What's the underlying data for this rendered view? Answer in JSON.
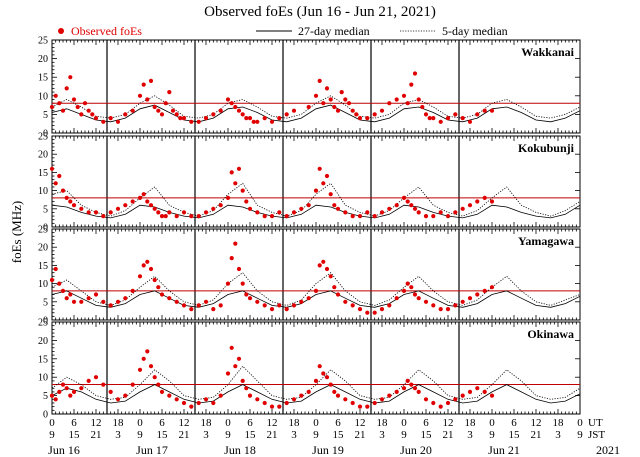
{
  "chart_data": {
    "type": "scatter",
    "title": "Observed foEs (Jun 16 - Jun 21, 2021)",
    "ylabel": "foEs (MHz)",
    "ylim": [
      0,
      25
    ],
    "yticks": [
      "0",
      "5",
      "10",
      "15",
      "20",
      "25"
    ],
    "threshold_mhz": 8,
    "legend": [
      {
        "key": "observed",
        "label": "Observed foEs",
        "color": "#e00000"
      },
      {
        "key": "median27",
        "label": "27-day median"
      },
      {
        "key": "median5",
        "label": "5-day median"
      }
    ],
    "ut_ticks": [
      "0",
      "6",
      "12",
      "18",
      "0",
      "6",
      "12",
      "18",
      "0",
      "6",
      "12",
      "18",
      "0",
      "6",
      "12",
      "18",
      "0",
      "6",
      "12",
      "18",
      "0",
      "6",
      "12",
      "18",
      "0"
    ],
    "jst_ticks": [
      "9",
      "15",
      "21",
      "3",
      "9",
      "15",
      "21",
      "3",
      "9",
      "15",
      "21",
      "3",
      "9",
      "15",
      "21",
      "3",
      "9",
      "15",
      "21",
      "3",
      "9",
      "15",
      "21",
      "3",
      "9"
    ],
    "ut_label": "UT",
    "jst_label": "JST",
    "days": [
      "Jun 16",
      "Jun 17",
      "Jun 18",
      "Jun 19",
      "Jun 20",
      "Jun 21"
    ],
    "year": "2021",
    "x_range_hours": [
      0,
      144
    ],
    "stations": [
      {
        "name": "Wakkanai",
        "observed_hours": [
          0,
          1,
          2,
          3,
          4,
          5,
          6,
          7,
          8,
          9,
          10,
          11,
          12,
          14,
          16,
          18,
          20,
          22,
          24,
          25,
          26,
          27,
          28,
          29,
          30,
          31,
          32,
          33,
          34,
          35,
          36,
          38,
          40,
          42,
          44,
          46,
          48,
          49,
          50,
          51,
          52,
          53,
          54,
          55,
          56,
          58,
          60,
          62,
          64,
          66,
          70,
          72,
          73,
          74,
          75,
          76,
          77,
          78,
          79,
          80,
          81,
          82,
          83,
          84,
          86,
          88,
          90,
          92,
          94,
          96,
          97,
          98,
          99,
          100,
          101,
          102,
          103,
          104,
          106,
          108,
          110,
          112,
          114,
          116,
          118,
          120
        ],
        "observed_mhz": [
          7,
          10,
          8,
          6,
          12,
          15,
          9,
          7,
          5,
          8,
          6,
          5,
          4,
          3,
          4,
          3,
          5,
          6,
          10,
          13,
          9,
          14,
          7,
          6,
          5,
          8,
          11,
          6,
          5,
          4,
          4,
          3,
          3,
          4,
          5,
          6,
          9,
          8,
          7,
          6,
          5,
          4,
          4,
          3,
          3,
          4,
          3,
          4,
          5,
          6,
          7,
          10,
          14,
          8,
          12,
          9,
          7,
          6,
          11,
          9,
          8,
          6,
          5,
          4,
          4,
          5,
          6,
          8,
          9,
          10,
          8,
          13,
          16,
          9,
          7,
          5,
          4,
          4,
          3,
          4,
          5,
          4,
          3,
          5,
          6,
          6
        ],
        "median27_hours": [
          0,
          4,
          8,
          12,
          16,
          20,
          24,
          28,
          32,
          36,
          40,
          44,
          48,
          52,
          56,
          60,
          64,
          68,
          72,
          76,
          80,
          84,
          88,
          92,
          96,
          100,
          104,
          108,
          112,
          116,
          120,
          124,
          128,
          132,
          136,
          140,
          144
        ],
        "median27_mhz": [
          5.5,
          6.5,
          5,
          3.5,
          3,
          4,
          6.5,
          7.5,
          5.5,
          3.5,
          3,
          4,
          6.5,
          7,
          5.5,
          3.5,
          3,
          4,
          6.5,
          7.5,
          5.5,
          3.5,
          3,
          4,
          6.5,
          7,
          5.5,
          3.5,
          3,
          4,
          6.5,
          7,
          5.5,
          3.5,
          3,
          4,
          6
        ],
        "median5_hours": [
          0,
          4,
          8,
          12,
          16,
          20,
          24,
          28,
          32,
          36,
          40,
          44,
          48,
          52,
          56,
          60,
          64,
          68,
          72,
          76,
          80,
          84,
          88,
          92,
          96,
          100,
          104,
          108,
          112,
          116,
          120,
          124,
          128,
          132,
          136,
          140,
          144
        ],
        "median5_mhz": [
          7,
          9,
          7,
          4.5,
          4,
          5,
          8,
          10,
          7.5,
          4.5,
          4,
          5,
          8,
          9,
          7,
          4.5,
          4,
          5,
          8,
          10,
          7.5,
          4.5,
          4,
          5,
          8,
          9,
          7,
          4.5,
          4,
          5,
          8,
          9,
          7,
          4.5,
          4,
          5,
          7
        ]
      },
      {
        "name": "Kokubunji",
        "observed_hours": [
          0,
          1,
          2,
          3,
          4,
          5,
          6,
          8,
          10,
          12,
          14,
          16,
          18,
          20,
          22,
          24,
          25,
          26,
          27,
          28,
          29,
          30,
          31,
          32,
          34,
          36,
          38,
          40,
          42,
          44,
          46,
          48,
          49,
          50,
          51,
          52,
          53,
          54,
          56,
          58,
          60,
          62,
          64,
          66,
          68,
          70,
          72,
          73,
          74,
          75,
          76,
          77,
          78,
          80,
          82,
          84,
          86,
          88,
          90,
          92,
          94,
          96,
          97,
          98,
          99,
          100,
          102,
          104,
          106,
          108,
          110,
          112,
          114,
          116,
          118,
          120
        ],
        "observed_mhz": [
          16,
          12,
          14,
          10,
          8,
          7,
          6,
          5,
          4,
          4,
          3,
          4,
          5,
          6,
          7,
          8,
          9,
          7,
          6,
          5,
          4,
          3,
          3,
          4,
          3,
          4,
          3,
          3,
          4,
          5,
          6,
          8,
          15,
          12,
          16,
          10,
          7,
          5,
          4,
          3,
          3,
          4,
          3,
          4,
          5,
          6,
          10,
          16,
          12,
          14,
          9,
          6,
          5,
          4,
          3,
          3,
          4,
          3,
          4,
          5,
          6,
          8,
          7,
          6,
          5,
          4,
          3,
          3,
          4,
          3,
          4,
          5,
          6,
          7,
          8,
          7
        ],
        "median27_hours": [
          0,
          4,
          8,
          12,
          16,
          20,
          24,
          28,
          32,
          36,
          40,
          44,
          48,
          52,
          56,
          60,
          64,
          68,
          72,
          76,
          80,
          84,
          88,
          92,
          96,
          100,
          104,
          108,
          112,
          116,
          120,
          124,
          128,
          132,
          136,
          140,
          144
        ],
        "median27_mhz": [
          6,
          5.5,
          4,
          3,
          2.5,
          3.5,
          6,
          5.5,
          4,
          3,
          2.5,
          3.5,
          6,
          5.5,
          4,
          3,
          2.5,
          3.5,
          6,
          5.5,
          4,
          3,
          2.5,
          3.5,
          6,
          5.5,
          4,
          3,
          2.5,
          3.5,
          6,
          5.5,
          4,
          3,
          2.5,
          3.5,
          6
        ],
        "median5_hours": [
          0,
          4,
          8,
          12,
          16,
          20,
          24,
          28,
          32,
          36,
          40,
          44,
          48,
          52,
          56,
          60,
          64,
          68,
          72,
          76,
          80,
          84,
          88,
          92,
          96,
          100,
          104,
          108,
          112,
          116,
          120,
          124,
          128,
          132,
          136,
          140,
          144
        ],
        "median5_mhz": [
          9,
          10,
          6,
          4,
          3,
          4.5,
          8,
          11,
          6,
          4,
          3,
          4.5,
          9,
          12,
          6,
          4,
          3,
          4.5,
          9,
          12,
          6,
          4,
          3,
          4.5,
          8,
          11,
          6,
          4,
          3,
          4.5,
          8,
          11,
          6,
          4,
          3,
          4.5,
          7
        ]
      },
      {
        "name": "Yamagawa",
        "observed_hours": [
          0,
          1,
          2,
          3,
          4,
          5,
          6,
          8,
          10,
          12,
          14,
          16,
          18,
          20,
          22,
          24,
          25,
          26,
          27,
          28,
          29,
          30,
          32,
          34,
          36,
          38,
          40,
          42,
          44,
          46,
          48,
          49,
          50,
          51,
          52,
          53,
          54,
          56,
          58,
          60,
          62,
          64,
          66,
          68,
          70,
          72,
          73,
          74,
          75,
          76,
          77,
          78,
          80,
          82,
          84,
          86,
          88,
          90,
          92,
          94,
          96,
          97,
          98,
          99,
          100,
          102,
          104,
          106,
          108,
          110,
          112,
          114,
          116,
          118,
          120
        ],
        "observed_mhz": [
          11,
          14,
          10,
          8,
          6,
          7,
          5,
          5,
          6,
          7,
          5,
          4,
          5,
          6,
          8,
          12,
          15,
          16,
          14,
          11,
          9,
          7,
          6,
          5,
          4,
          3,
          4,
          5,
          3,
          4,
          10,
          17,
          21,
          14,
          10,
          7,
          6,
          5,
          4,
          3,
          4,
          3,
          4,
          5,
          6,
          8,
          15,
          16,
          14,
          12,
          9,
          7,
          5,
          4,
          3,
          2,
          2,
          3,
          4,
          6,
          8,
          10,
          9,
          7,
          6,
          5,
          4,
          3,
          3,
          4,
          5,
          6,
          7,
          8,
          9
        ],
        "median27_hours": [
          0,
          4,
          8,
          12,
          16,
          20,
          24,
          28,
          32,
          36,
          40,
          44,
          48,
          52,
          56,
          60,
          64,
          68,
          72,
          76,
          80,
          84,
          88,
          92,
          96,
          100,
          104,
          108,
          112,
          116,
          120,
          124,
          128,
          132,
          136,
          140,
          144
        ],
        "median27_mhz": [
          7,
          8,
          6,
          4,
          3.5,
          4.5,
          7,
          8,
          6,
          4,
          3.5,
          4.5,
          7,
          8,
          6,
          4,
          3.5,
          4.5,
          7,
          8,
          6,
          4,
          3.5,
          4.5,
          7,
          8,
          6,
          4,
          3.5,
          4.5,
          7,
          8,
          6,
          4,
          3.5,
          4.5,
          6.5
        ],
        "median5_hours": [
          0,
          4,
          8,
          12,
          16,
          20,
          24,
          28,
          32,
          36,
          40,
          44,
          48,
          52,
          56,
          60,
          64,
          68,
          72,
          76,
          80,
          84,
          88,
          92,
          96,
          100,
          104,
          108,
          112,
          116,
          120,
          124,
          128,
          132,
          136,
          140,
          144
        ],
        "median5_mhz": [
          9,
          11,
          8,
          5,
          4,
          5.5,
          9,
          12,
          8,
          5,
          4,
          5.5,
          10,
          13,
          8,
          5,
          4,
          5.5,
          10,
          13,
          8,
          5,
          4,
          5.5,
          9,
          12,
          8,
          5,
          4,
          5.5,
          9,
          12,
          8,
          5,
          4,
          5.5,
          7
        ]
      },
      {
        "name": "Okinawa",
        "observed_hours": [
          0,
          1,
          2,
          3,
          4,
          5,
          6,
          8,
          10,
          12,
          14,
          16,
          18,
          20,
          22,
          24,
          25,
          26,
          27,
          28,
          29,
          30,
          32,
          34,
          36,
          38,
          40,
          42,
          44,
          46,
          48,
          49,
          50,
          51,
          52,
          53,
          54,
          56,
          58,
          60,
          62,
          64,
          66,
          68,
          70,
          72,
          73,
          74,
          75,
          76,
          77,
          78,
          80,
          82,
          84,
          86,
          88,
          90,
          92,
          94,
          96,
          97,
          98,
          99,
          100,
          102,
          104,
          106,
          108,
          110,
          112,
          114,
          116,
          118,
          120
        ],
        "observed_mhz": [
          5,
          4,
          6,
          8,
          7,
          5,
          6,
          7,
          9,
          10,
          8,
          6,
          4,
          5,
          8,
          12,
          15,
          17,
          13,
          10,
          8,
          6,
          5,
          4,
          3,
          2,
          3,
          4,
          3,
          5,
          11,
          18,
          13,
          15,
          9,
          7,
          5,
          4,
          3,
          2,
          2,
          3,
          4,
          5,
          6,
          9,
          13,
          11,
          10,
          8,
          6,
          5,
          4,
          3,
          2,
          2,
          3,
          4,
          5,
          6,
          7,
          9,
          8,
          7,
          6,
          4,
          3,
          2,
          3,
          4,
          5,
          6,
          7,
          6,
          5
        ],
        "median27_hours": [
          0,
          4,
          8,
          12,
          16,
          20,
          24,
          28,
          32,
          36,
          40,
          44,
          48,
          52,
          56,
          60,
          64,
          68,
          72,
          76,
          80,
          84,
          88,
          92,
          96,
          100,
          104,
          108,
          112,
          116,
          120,
          124,
          128,
          132,
          136,
          140,
          144
        ],
        "median27_mhz": [
          5,
          7,
          6,
          4,
          3,
          3.5,
          6,
          8,
          6,
          4,
          3,
          3.5,
          6,
          8,
          6,
          4,
          3,
          3.5,
          6,
          8,
          6,
          4,
          3,
          3.5,
          6,
          8,
          6,
          4,
          3,
          3.5,
          6,
          8,
          6,
          4,
          3,
          3.5,
          5.5
        ],
        "median5_hours": [
          0,
          4,
          8,
          12,
          16,
          20,
          24,
          28,
          32,
          36,
          40,
          44,
          48,
          52,
          56,
          60,
          64,
          68,
          72,
          76,
          80,
          84,
          88,
          92,
          96,
          100,
          104,
          108,
          112,
          116,
          120,
          124,
          128,
          132,
          136,
          140,
          144
        ],
        "median5_mhz": [
          7,
          10,
          8,
          5,
          4,
          4.5,
          8,
          12,
          9,
          5,
          4,
          4.5,
          8,
          13,
          9,
          5,
          4,
          4.5,
          8,
          12,
          9,
          5,
          4,
          4.5,
          8,
          12,
          9,
          5,
          4,
          4.5,
          8,
          12,
          9,
          5,
          4,
          4.5,
          7
        ]
      }
    ]
  },
  "colors": {
    "observed": "#e00000",
    "threshold": "#c00000",
    "lines": "#000000"
  }
}
